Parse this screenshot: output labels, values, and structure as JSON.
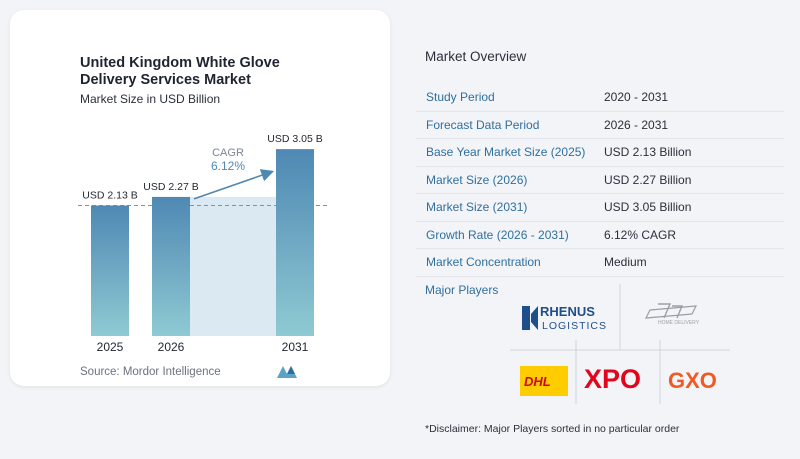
{
  "chart_data": {
    "type": "bar",
    "title": "United Kingdom White Glove Delivery Services Market",
    "subtitle": "Market Size in USD Billion",
    "categories": [
      "2025",
      "2026",
      "2031"
    ],
    "values": [
      2.13,
      2.27,
      3.05
    ],
    "data_labels": [
      "USD 2.13 B",
      "USD 2.27 B",
      "USD 3.05 B"
    ],
    "ylim": [
      0,
      3.15
    ],
    "cagr_label": "CAGR",
    "cagr_value": "6.12%",
    "colors": {
      "bar": "#4f88b3",
      "bar_gradient_end": "#8ecad3",
      "band": "#dbe9f3",
      "arrow": "#4f88b3"
    }
  },
  "source": "Source: Mordor Intelligence",
  "brand_mark": "mordor-intelligence-logo-icon",
  "overview": {
    "title": "Market Overview",
    "rows": [
      {
        "label": "Study Period",
        "value": "2020 - 2031"
      },
      {
        "label": "Forecast Data Period",
        "value": "2026 - 2031"
      },
      {
        "label": "Base Year Market Size (2025)",
        "value": "USD 2.13 Billion"
      },
      {
        "label": "Market Size (2026)",
        "value": "USD 2.27 Billion"
      },
      {
        "label": "Market Size (2031)",
        "value": "USD 3.05 Billion"
      },
      {
        "label": "Growth Rate (2026 - 2031)",
        "value": "6.12% CAGR"
      },
      {
        "label": "Market Concentration",
        "value": "Medium"
      }
    ]
  },
  "major_players": {
    "title": "Major Players",
    "logos": [
      {
        "name": "RHENUS",
        "sub": "LOGISTICS",
        "icon": "rhenus-logo-icon"
      },
      {
        "name": "",
        "sub": "HOME DELIVERY",
        "icon": "home-delivery-logo-icon"
      },
      {
        "name": "DHL",
        "icon": "dhl-logo-icon"
      },
      {
        "name": "XPO",
        "icon": "xpo-logo-icon"
      },
      {
        "name": "GXO",
        "icon": "gxo-logo-icon"
      }
    ]
  },
  "disclaimer": "*Disclaimer: Major Players sorted in no particular order"
}
